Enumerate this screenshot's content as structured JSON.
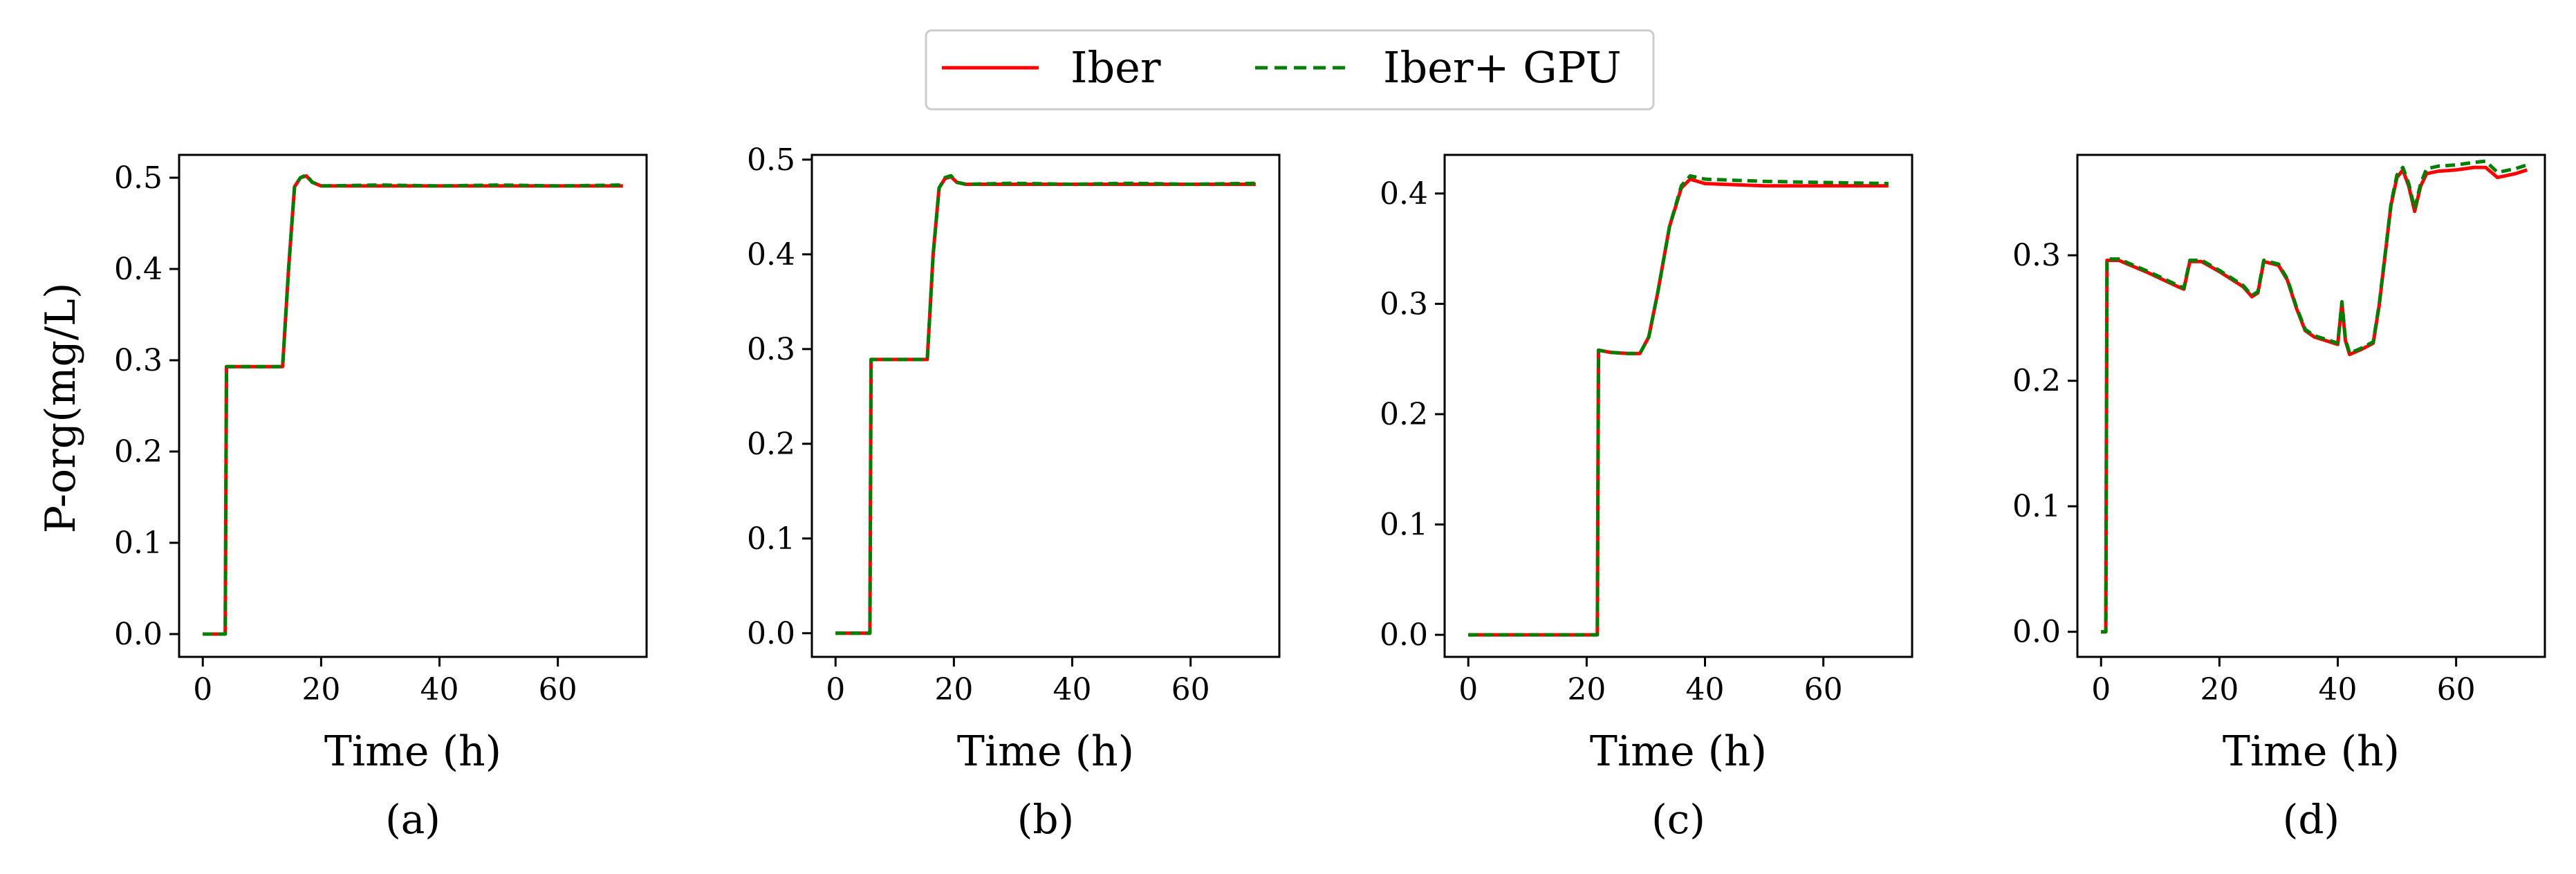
{
  "legend": {
    "items": [
      {
        "label": "Iber",
        "color": "#ff0000",
        "dash": "solid"
      },
      {
        "label": "Iber+ GPU",
        "color": "#008000",
        "dash": "dashed"
      }
    ]
  },
  "chart_data": [
    {
      "type": "line",
      "panel_label": "(a)",
      "xlabel": "Time (h)",
      "ylabel": "P-org(mg/L)",
      "xlim": [
        -4,
        75
      ],
      "ylim": [
        -0.025,
        0.525
      ],
      "xticks": [
        0,
        20,
        40,
        60
      ],
      "yticks": [
        0.0,
        0.1,
        0.2,
        0.3,
        0.4,
        0.5
      ],
      "ytick_labels": [
        "0.0",
        "0.1",
        "0.2",
        "0.3",
        "0.4",
        "0.5"
      ],
      "series": [
        {
          "name": "Iber",
          "x": [
            0,
            3.8,
            4.0,
            13.5,
            14.5,
            15.5,
            16.5,
            17.5,
            18.5,
            20,
            30,
            40,
            50,
            60,
            71
          ],
          "y": [
            0.0,
            0.0,
            0.293,
            0.293,
            0.4,
            0.49,
            0.5,
            0.502,
            0.495,
            0.491,
            0.491,
            0.491,
            0.491,
            0.491,
            0.491
          ]
        },
        {
          "name": "Iber+ GPU",
          "x": [
            0,
            3.8,
            4.0,
            13.5,
            14.5,
            15.5,
            16.5,
            17.5,
            18.5,
            20,
            30,
            40,
            50,
            60,
            71
          ],
          "y": [
            0.0,
            0.0,
            0.293,
            0.293,
            0.4,
            0.49,
            0.5,
            0.503,
            0.495,
            0.491,
            0.492,
            0.491,
            0.492,
            0.491,
            0.492
          ]
        }
      ]
    },
    {
      "type": "line",
      "panel_label": "(b)",
      "xlabel": "Time (h)",
      "ylabel": "",
      "xlim": [
        -4,
        75
      ],
      "ylim": [
        -0.025,
        0.505
      ],
      "xticks": [
        0,
        20,
        40,
        60
      ],
      "yticks": [
        0.0,
        0.1,
        0.2,
        0.3,
        0.4,
        0.5
      ],
      "ytick_labels": [
        "0.0",
        "0.1",
        "0.2",
        "0.3",
        "0.4",
        "0.5"
      ],
      "series": [
        {
          "name": "Iber",
          "x": [
            0,
            5.8,
            6.0,
            15.5,
            16.5,
            17.5,
            18.5,
            19.5,
            20.5,
            22,
            30,
            40,
            50,
            60,
            71
          ],
          "y": [
            0.0,
            0.0,
            0.289,
            0.289,
            0.4,
            0.47,
            0.48,
            0.482,
            0.476,
            0.474,
            0.474,
            0.474,
            0.474,
            0.474,
            0.474
          ]
        },
        {
          "name": "Iber+ GPU",
          "x": [
            0,
            5.8,
            6.0,
            15.5,
            16.5,
            17.5,
            18.5,
            19.5,
            20.5,
            22,
            30,
            40,
            50,
            60,
            71
          ],
          "y": [
            0.0,
            0.0,
            0.289,
            0.289,
            0.4,
            0.47,
            0.481,
            0.483,
            0.476,
            0.474,
            0.475,
            0.474,
            0.475,
            0.474,
            0.475
          ]
        }
      ]
    },
    {
      "type": "line",
      "panel_label": "(c)",
      "xlabel": "Time (h)",
      "ylabel": "",
      "xlim": [
        -4,
        75
      ],
      "ylim": [
        -0.02,
        0.435
      ],
      "xticks": [
        0,
        20,
        40,
        60
      ],
      "yticks": [
        0.0,
        0.1,
        0.2,
        0.3,
        0.4
      ],
      "ytick_labels": [
        "0.0",
        "0.1",
        "0.2",
        "0.3",
        "0.4"
      ],
      "series": [
        {
          "name": "Iber",
          "x": [
            0,
            21.8,
            22.0,
            24,
            27,
            29,
            30.5,
            32,
            34,
            36,
            37.5,
            40,
            50,
            60,
            71
          ],
          "y": [
            0.0,
            0.0,
            0.258,
            0.256,
            0.255,
            0.255,
            0.27,
            0.31,
            0.37,
            0.405,
            0.413,
            0.409,
            0.407,
            0.407,
            0.407
          ]
        },
        {
          "name": "Iber+ GPU",
          "x": [
            0,
            21.8,
            22.0,
            24,
            27,
            29,
            30.5,
            32,
            34,
            36,
            37.5,
            40,
            50,
            60,
            71
          ],
          "y": [
            0.0,
            0.0,
            0.258,
            0.256,
            0.255,
            0.255,
            0.27,
            0.31,
            0.37,
            0.407,
            0.416,
            0.413,
            0.411,
            0.41,
            0.409
          ]
        }
      ]
    },
    {
      "type": "line",
      "panel_label": "(d)",
      "xlabel": "Time (h)",
      "ylabel": "",
      "xlim": [
        -4,
        75
      ],
      "ylim": [
        -0.02,
        0.38
      ],
      "xticks": [
        0,
        20,
        40,
        60
      ],
      "yticks": [
        0.0,
        0.1,
        0.2,
        0.3
      ],
      "ytick_labels": [
        "0.0",
        "0.1",
        "0.2",
        "0.3"
      ],
      "series": [
        {
          "name": "Iber",
          "x": [
            0,
            0.8,
            1.0,
            3,
            8,
            13,
            14,
            15,
            17,
            20,
            24,
            25.5,
            26.5,
            27.5,
            30,
            31.5,
            33,
            34.5,
            36,
            38,
            40,
            40.7,
            41.3,
            42,
            44,
            46,
            47,
            48,
            49,
            50,
            51,
            52,
            53,
            54,
            55,
            57,
            60,
            63,
            65,
            67,
            70,
            72
          ],
          "y": [
            0.0,
            0.0,
            0.296,
            0.296,
            0.286,
            0.275,
            0.273,
            0.295,
            0.295,
            0.287,
            0.275,
            0.267,
            0.27,
            0.295,
            0.292,
            0.28,
            0.258,
            0.24,
            0.235,
            0.232,
            0.229,
            0.262,
            0.232,
            0.221,
            0.225,
            0.23,
            0.26,
            0.3,
            0.34,
            0.362,
            0.368,
            0.355,
            0.335,
            0.355,
            0.365,
            0.367,
            0.368,
            0.37,
            0.37,
            0.362,
            0.365,
            0.368
          ]
        },
        {
          "name": "Iber+ GPU",
          "x": [
            0,
            0.8,
            1.0,
            3,
            8,
            13,
            14,
            15,
            17,
            20,
            24,
            25.5,
            26.5,
            27.5,
            30,
            31.5,
            33,
            34.5,
            36,
            38,
            40,
            40.7,
            41.3,
            42,
            44,
            46,
            47,
            48,
            49,
            50,
            51,
            52,
            53,
            54,
            55,
            57,
            60,
            63,
            65,
            67,
            70,
            72
          ],
          "y": [
            0.0,
            0.0,
            0.297,
            0.297,
            0.287,
            0.276,
            0.274,
            0.296,
            0.296,
            0.288,
            0.276,
            0.268,
            0.271,
            0.296,
            0.293,
            0.281,
            0.259,
            0.241,
            0.236,
            0.233,
            0.23,
            0.263,
            0.233,
            0.222,
            0.226,
            0.231,
            0.261,
            0.301,
            0.341,
            0.364,
            0.37,
            0.357,
            0.337,
            0.357,
            0.369,
            0.371,
            0.372,
            0.374,
            0.375,
            0.366,
            0.369,
            0.372
          ]
        }
      ]
    }
  ]
}
